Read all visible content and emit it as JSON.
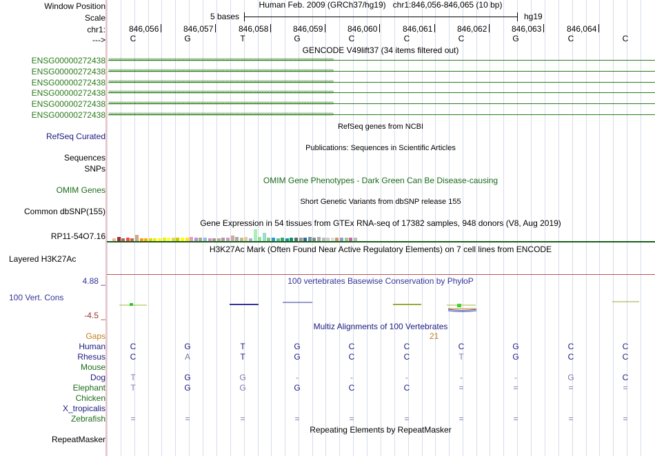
{
  "header": {
    "window_position_label": "Window Position",
    "scale_label": "Scale",
    "chrom_label": "chr1:",
    "strand_label": "--->",
    "assembly_text": "Human Feb. 2009 (GRCh37/hg19)",
    "position_text": "chr1:846,056-846,065 (10 bp)",
    "scale_text": "5 bases",
    "scale_db": "hg19",
    "coordinates": [
      "846,056",
      "846,057",
      "846,058",
      "846,059",
      "846,060",
      "846,061",
      "846,062",
      "846,063",
      "846,064"
    ],
    "reference_bases": [
      "C",
      "G",
      "T",
      "G",
      "C",
      "C",
      "C",
      "G",
      "C",
      "C"
    ]
  },
  "tracks": {
    "gencode": {
      "title": "GENCODE V49lift37 (34 items filtered out)",
      "items": [
        "ENSG00000272438",
        "ENSG00000272438",
        "ENSG00000272438",
        "ENSG00000272438",
        "ENSG00000272438",
        "ENSG00000272438"
      ],
      "color": "#2a7a1a"
    },
    "refseq": {
      "label": "RefSeq Curated",
      "title": "RefSeq genes from NCBI"
    },
    "publications": {
      "label": "Sequences",
      "title": "Publications: Sequences in Scientific Articles"
    },
    "snps": {
      "label": "SNPs"
    },
    "omim": {
      "label": "OMIM Genes",
      "title": "OMIM Gene Phenotypes - Dark Green Can Be Disease-causing",
      "color": "#1a6b1a"
    },
    "dbsnp": {
      "label": "Common dbSNP(155)",
      "title": "Short Genetic Variants from dbSNP release 155"
    },
    "gtex": {
      "label": "RP11-54O7.16",
      "title": "Gene Expression in 54 tissues from GTEx RNA-seq of 17382 samples, 948 donors (V8, Aug 2019)"
    },
    "h3k27ac": {
      "label": "Layered H3K27Ac",
      "title": "H3K27Ac Mark (Often Found Near Active Regulatory Elements) on 7 cell lines from ENCODE"
    },
    "phylop": {
      "label": "100 Vert. Cons",
      "title": "100 vertebrates Basewise Conservation by PhyloP",
      "max_label": "4.88 _",
      "min_label": "-4.5 _",
      "color": "#333399"
    },
    "multiz": {
      "title": "Multiz Alignments of 100 Vertebrates",
      "gaps_label": "Gaps",
      "gap_count": "21",
      "species": [
        {
          "name": "Human",
          "bases": [
            "C",
            "G",
            "T",
            "G",
            "C",
            "C",
            "C",
            "G",
            "C",
            "C"
          ]
        },
        {
          "name": "Rhesus",
          "bases": [
            "C",
            "A",
            "T",
            "G",
            "C",
            "C",
            "T",
            "G",
            "C",
            "C"
          ]
        },
        {
          "name": "Mouse",
          "bases": [
            "",
            "",
            "",
            "",
            "",
            "",
            "",
            "",
            "",
            ""
          ]
        },
        {
          "name": "Dog",
          "bases": [
            "T",
            "G",
            "G",
            "-",
            "-",
            "-",
            "-",
            "-",
            "G",
            "C"
          ]
        },
        {
          "name": "Elephant",
          "bases": [
            "T",
            "G",
            "G",
            "G",
            "C",
            "C",
            "=",
            "=",
            "=",
            "="
          ]
        },
        {
          "name": "Chicken",
          "bases": [
            "",
            "",
            "",
            "",
            "",
            "",
            "",
            "",
            "",
            ""
          ]
        },
        {
          "name": "X_tropicalis",
          "bases": [
            "",
            "",
            "",
            "",
            "",
            "",
            "",
            "",
            "",
            ""
          ]
        },
        {
          "name": "Zebrafish",
          "bases": [
            "=",
            "=",
            "=",
            "=",
            "=",
            "=",
            "=",
            "=",
            "=",
            "="
          ]
        }
      ]
    },
    "repeatmasker": {
      "label": "RepeatMasker",
      "title": "Repeating Elements by RepeatMasker"
    }
  },
  "colors": {
    "species_label": "#1a1a80",
    "species_green": "#1a6b1a",
    "gaps": "#c08020",
    "phylop_max": "#333399",
    "phylop_min": "#993333",
    "refseq_label": "#1a1a80",
    "grid": "#d7dcea",
    "match_strong": "#1a1a80",
    "mismatch_light": "#7a7aaa"
  },
  "gtex_expression": [
    0.35,
    0.55,
    0.4,
    0.45,
    0.4,
    0.9,
    0.4,
    0.4,
    0.35,
    0.35,
    0.4,
    0.45,
    0.5,
    0.45,
    0.45,
    0.5,
    0.45,
    0.55,
    0.45,
    0.45,
    0.45,
    0.4,
    0.35,
    0.4,
    0.45,
    0.5,
    0.8,
    0.6,
    0.45,
    0.55,
    0.4,
    1.7,
    0.6,
    1.2,
    0.45,
    0.45,
    0.4,
    0.45,
    0.4,
    0.45,
    0.5,
    0.45,
    0.45,
    0.6,
    0.45,
    0.55,
    0.45,
    0.45,
    0.45,
    0.45,
    0.45,
    0.45,
    0.45,
    0.5
  ]
}
